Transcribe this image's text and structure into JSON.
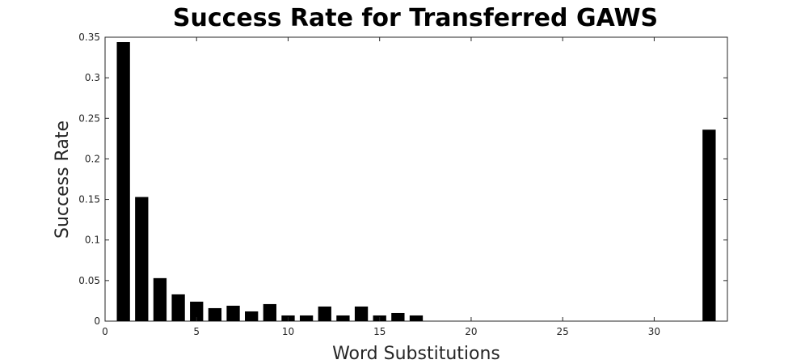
{
  "chart_data": {
    "type": "bar",
    "title": "Success Rate for Transferred GAWS",
    "xlabel": "Word Substitutions",
    "ylabel": "Success Rate",
    "xlim": [
      0,
      34
    ],
    "ylim": [
      0,
      0.35
    ],
    "xticks": [
      0,
      5,
      10,
      15,
      20,
      25,
      30
    ],
    "xtick_labels": [
      "0",
      "5",
      "10",
      "15",
      "20",
      "25",
      "30"
    ],
    "yticks": [
      0,
      0.05,
      0.1,
      0.15,
      0.2,
      0.25,
      0.3,
      0.35
    ],
    "ytick_labels": [
      "0",
      "0.05",
      "0.1",
      "0.15",
      "0.2",
      "0.25",
      "0.3",
      "0.35"
    ],
    "grid": false,
    "bar_color": "#000000",
    "x": [
      1,
      2,
      3,
      4,
      5,
      6,
      7,
      8,
      9,
      10,
      11,
      12,
      13,
      14,
      15,
      16,
      17,
      33
    ],
    "values": [
      0.344,
      0.153,
      0.053,
      0.033,
      0.024,
      0.016,
      0.019,
      0.012,
      0.021,
      0.007,
      0.007,
      0.018,
      0.007,
      0.018,
      0.007,
      0.01,
      0.007,
      0.236
    ]
  }
}
